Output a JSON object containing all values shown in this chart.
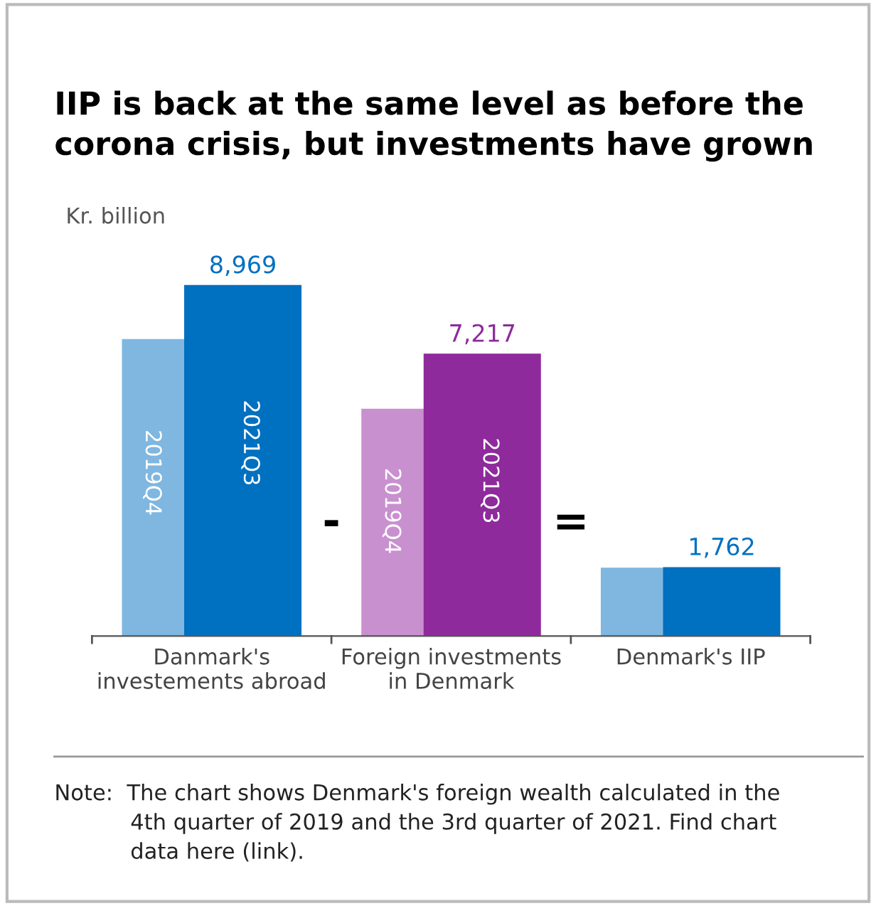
{
  "chart_data": {
    "type": "bar",
    "title": "IIP is back at the same level as before the\ncorona crisis, but investments have grown",
    "ylabel": "Kr. billion",
    "categories": [
      "Danmark's\ninvestements abroad",
      "Foreign investments\nin Denmark",
      "Denmark's IIP"
    ],
    "series": [
      {
        "name": "2019Q4",
        "colors": [
          "#7fb7e0",
          "#c990cf",
          "#7fb7e0"
        ],
        "values": [
          7590,
          5810,
          1745
        ]
      },
      {
        "name": "2021Q3",
        "colors": [
          "#0070c0",
          "#8e2a9c",
          "#0070c0"
        ],
        "values": [
          8969,
          7217,
          1762
        ],
        "value_labels": [
          "8,969",
          "7,217",
          "1,762"
        ]
      }
    ],
    "annotations": [
      "-",
      "=",
      "Note:  The chart shows Denmark's foreign wealth calculated in the\n           4th quarter of 2019 and the 3rd quarter of 2021. Find chart\n           data here (link)."
    ],
    "grid": false,
    "legend": false
  }
}
